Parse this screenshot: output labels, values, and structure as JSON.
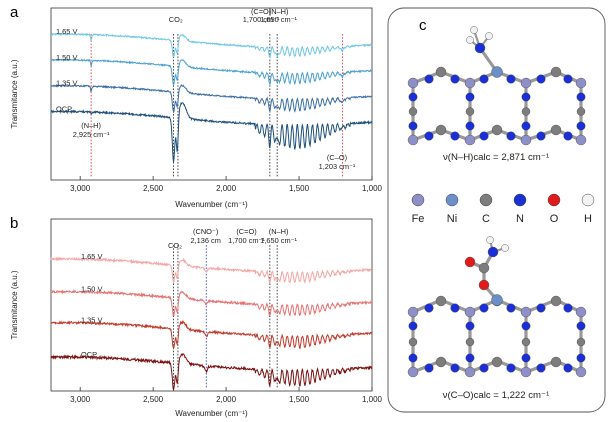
{
  "figure": {
    "panel_a_label": "a",
    "panel_b_label": "b",
    "panel_c_label": "c"
  },
  "chart_data": [
    {
      "type": "line",
      "panel": "a",
      "xlabel": "Wavenumber (cm⁻¹)",
      "ylabel": "Transmitance (a.u.)",
      "xlim": [
        3200,
        1000
      ],
      "x_reversed": true,
      "x_ticks": [
        "3,000",
        "2,500",
        "2,000",
        "1,500",
        "1,000"
      ],
      "x_tick_values": [
        3000,
        2500,
        2000,
        1500,
        1000
      ],
      "grid": false,
      "series": [
        {
          "name": "1.65 V",
          "color": "#6ec6e8",
          "level": 0.07
        },
        {
          "name": "1.50 V",
          "color": "#4a9fd0",
          "level": 0.22
        },
        {
          "name": "1.35 V",
          "color": "#3b6fa3",
          "level": 0.37
        },
        {
          "name": "OCP",
          "color": "#1d4f7a",
          "level": 0.52
        }
      ],
      "reference_lines": [
        {
          "x": 2925,
          "style": "red-dotted"
        },
        {
          "x": 2360,
          "style": "black-dotted"
        },
        {
          "x": 2330,
          "style": "black-dotted"
        },
        {
          "x": 1700,
          "style": "black-dotted"
        },
        {
          "x": 1650,
          "style": "black-dotted"
        },
        {
          "x": 1203,
          "style": "red-dotted"
        }
      ],
      "annotations": [
        {
          "text": "CO₂",
          "x": 2345
        },
        {
          "text": "(C=O)",
          "x": 1760
        },
        {
          "text": "1,700 cm⁻¹",
          "x": 1760
        },
        {
          "text": "(N–H)",
          "x": 1640
        },
        {
          "text": "1,650 cm⁻¹",
          "x": 1640
        },
        {
          "text": "(N–H)",
          "x": 2925
        },
        {
          "text": "2,925 cm⁻¹",
          "x": 2925
        },
        {
          "text": "(C–O)",
          "x": 1240
        },
        {
          "text": "1,203 cm⁻¹",
          "x": 1240
        }
      ]
    },
    {
      "type": "line",
      "panel": "b",
      "xlabel": "Wavenumber (cm⁻¹)",
      "ylabel": "Transmitance (a.u.)",
      "xlim": [
        3200,
        1000
      ],
      "x_reversed": true,
      "x_ticks": [
        "3,000",
        "2,500",
        "2,000",
        "1,500",
        "1,000"
      ],
      "x_tick_values": [
        3000,
        2500,
        2000,
        1500,
        1000
      ],
      "grid": false,
      "series": [
        {
          "name": "1.65 V",
          "color": "#f4a6a6",
          "level": 0.15
        },
        {
          "name": "1.50 V",
          "color": "#e57373",
          "level": 0.34
        },
        {
          "name": "1.35 V",
          "color": "#c0392b",
          "level": 0.52
        },
        {
          "name": "OCP",
          "color": "#7a1010",
          "level": 0.72
        }
      ],
      "reference_lines": [
        {
          "x": 2360,
          "style": "black-dotted"
        },
        {
          "x": 2330,
          "style": "black-dotted"
        },
        {
          "x": 2136,
          "style": "blue-dotted"
        },
        {
          "x": 1700,
          "style": "black-dotted"
        },
        {
          "x": 1650,
          "style": "black-dotted"
        }
      ],
      "annotations": [
        {
          "text": "CO₂",
          "x": 2350
        },
        {
          "text": "(CNO⁻)",
          "x": 2140
        },
        {
          "text": "2,136 cm",
          "x": 2140
        },
        {
          "text": "(C=O)",
          "x": 1860
        },
        {
          "text": "1,700 cm⁻¹",
          "x": 1860
        },
        {
          "text": "(N–H)",
          "x": 1640
        },
        {
          "text": "1,650 cm⁻¹",
          "x": 1640
        }
      ]
    }
  ],
  "panel_c": {
    "legend": [
      {
        "symbol": "Fe",
        "color": "#8e8ec9"
      },
      {
        "symbol": "Ni",
        "color": "#6c8fc8"
      },
      {
        "symbol": "C",
        "color": "#7d7d7d"
      },
      {
        "symbol": "N",
        "color": "#1a2fd6"
      },
      {
        "symbol": "O",
        "color": "#e01b1b"
      },
      {
        "symbol": "H",
        "color": "#f2f2f2"
      }
    ],
    "caption_top": "ν(N–H)calc = 2,871 cm⁻¹",
    "caption_bottom": "ν(C–O)calc = 1,222 cm⁻¹"
  }
}
